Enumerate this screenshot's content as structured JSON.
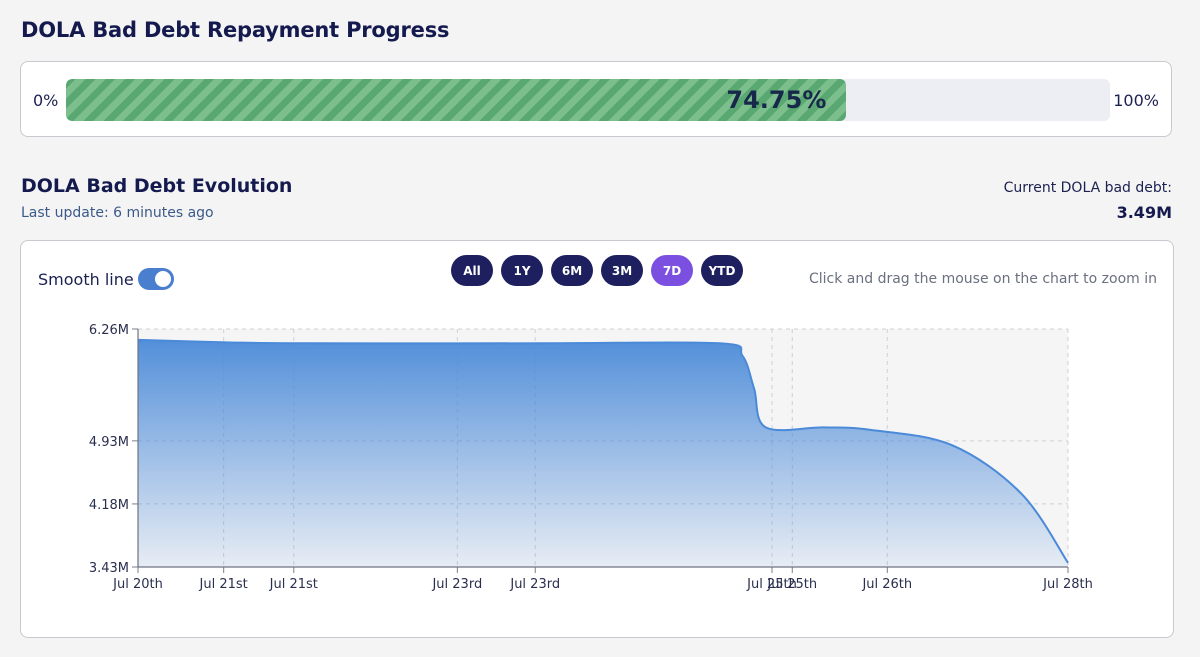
{
  "repayment": {
    "title": "DOLA Bad Debt Repayment Progress",
    "min_label": "0%",
    "max_label": "100%",
    "progress_percent": 74.75,
    "progress_label": "74.75%",
    "fill_color": "#5aa871"
  },
  "evolution": {
    "title": "DOLA Bad Debt Evolution",
    "last_update": "Last update: 6 minutes ago",
    "current_label": "Current DOLA bad debt:",
    "current_value": "3.49M"
  },
  "controls": {
    "smooth_label": "Smooth line",
    "smooth_on": true,
    "ranges": [
      "All",
      "1Y",
      "6M",
      "3M",
      "7D",
      "YTD"
    ],
    "active_range": "7D",
    "hint": "Click and drag the mouse on the chart to zoom in"
  },
  "chart_data": {
    "type": "area",
    "x_ticks": [
      "Jul 20th",
      "Jul 21st",
      "Jul 21st",
      "Jul 23rd",
      "Jul 23rd",
      "Jul 25th",
      "Jul 25th",
      "Jul 26th",
      "Jul 28th"
    ],
    "y_ticks": [
      "6.26M",
      "4.93M",
      "4.18M",
      "3.43M"
    ],
    "ylim": [
      3.43,
      6.26
    ],
    "xlim": [
      0,
      8
    ],
    "grid": true,
    "color": "#4a8ad8",
    "x": [
      0,
      0.8,
      1.5,
      3.5,
      5.0,
      5.2,
      5.3,
      5.4,
      5.9,
      6.3,
      7.0,
      7.6,
      8.0
    ],
    "y": [
      6.13,
      6.1,
      6.09,
      6.09,
      6.09,
      5.94,
      5.55,
      5.09,
      5.09,
      5.06,
      4.88,
      4.3,
      3.48
    ]
  }
}
